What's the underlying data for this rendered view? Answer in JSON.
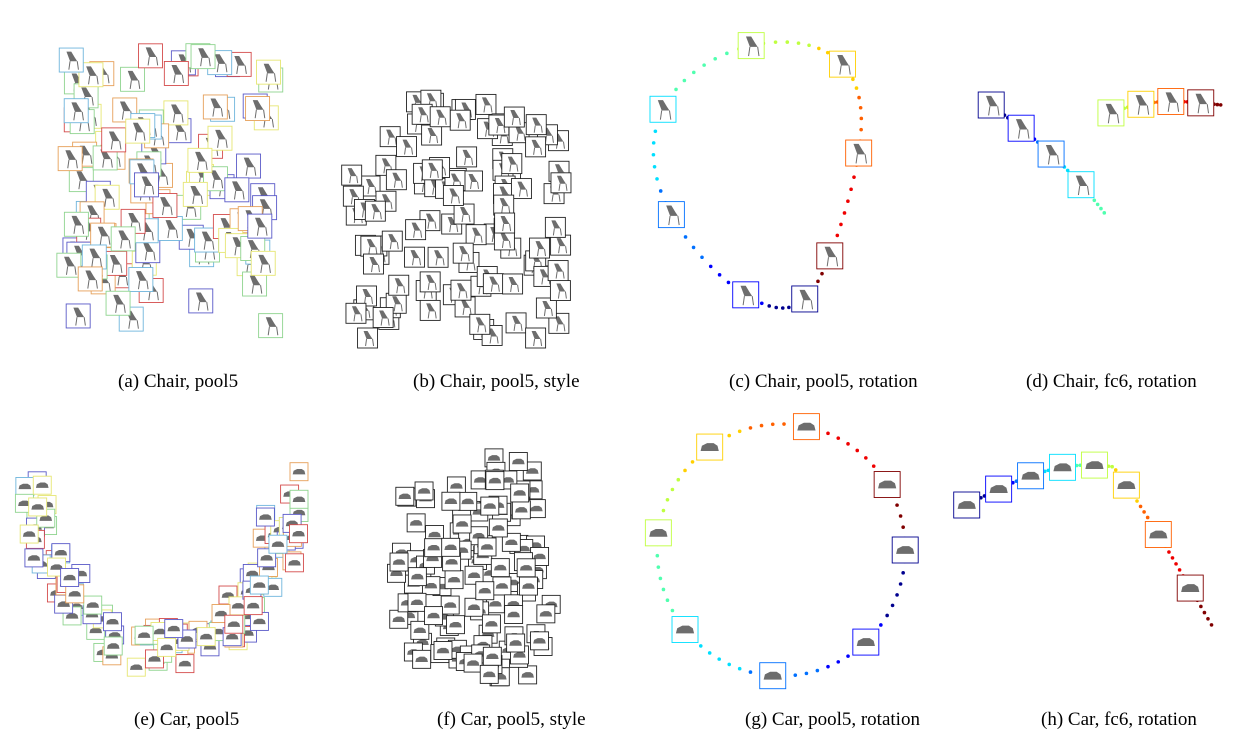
{
  "panels": [
    {
      "id": "a",
      "caption": "(a) Chair, pool5",
      "kind": "cluster",
      "object": "chair",
      "colored": true,
      "seed": 11
    },
    {
      "id": "b",
      "caption": "(b) Chair, pool5, style",
      "kind": "cluster",
      "object": "chair",
      "colored": false,
      "seed": 23
    },
    {
      "id": "c",
      "caption": "(c) Chair, pool5, rotation",
      "kind": "rotation",
      "object": "chair",
      "variant": "chair-pool5"
    },
    {
      "id": "d",
      "caption": "(d) Chair, fc6, rotation",
      "kind": "rotation",
      "object": "chair",
      "variant": "chair-fc6"
    },
    {
      "id": "e",
      "caption": "(e) Car, pool5",
      "kind": "cluster",
      "object": "car",
      "colored": true,
      "seed": 37
    },
    {
      "id": "f",
      "caption": "(f) Car, pool5, style",
      "kind": "cluster",
      "object": "car",
      "colored": false,
      "seed": 41
    },
    {
      "id": "g",
      "caption": "(g) Car, pool5, rotation",
      "kind": "rotation",
      "object": "car",
      "variant": "car-pool5"
    },
    {
      "id": "h",
      "caption": "(h) Car, fc6, rotation",
      "kind": "rotation",
      "object": "car",
      "variant": "car-fc6"
    }
  ],
  "colors": {
    "jet": [
      "#00008f",
      "#0000ff",
      "#0070ff",
      "#00dfff",
      "#50ffaf",
      "#bfff40",
      "#ffd000",
      "#ff6000",
      "#ef0000",
      "#800000"
    ],
    "frame_colors": [
      "#d44c4c",
      "#5a5ac8",
      "#6fb5dc",
      "#e6a05a",
      "#e6e673",
      "#8fd48f"
    ],
    "thumbnail_gray": "#6d6d6d",
    "plain_frame": "#222222"
  }
}
